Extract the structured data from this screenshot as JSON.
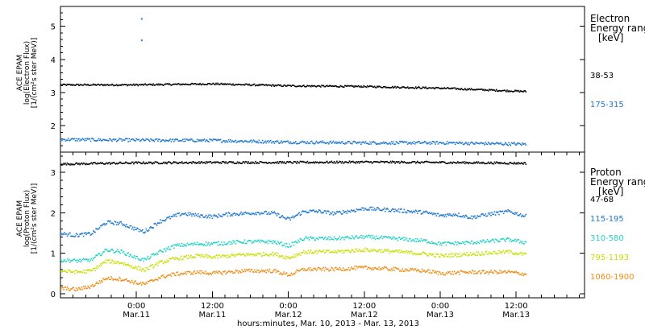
{
  "footer": {
    "xlabel": "hours:minutes, Mar. 10, 2013 - Mar. 13, 2013"
  },
  "x_ticks": [
    {
      "t": 0.5,
      "time": "0:00",
      "date": "Mar.11"
    },
    {
      "t": 1.0,
      "time": "12:00",
      "date": "Mar.11"
    },
    {
      "t": 1.5,
      "time": "0:00",
      "date": "Mar.12"
    },
    {
      "t": 2.0,
      "time": "12:00",
      "date": "Mar.12"
    },
    {
      "t": 2.5,
      "time": "0:00",
      "date": "Mar.13"
    },
    {
      "t": 3.0,
      "time": "12:00",
      "date": "Mar.13"
    }
  ],
  "chart_data": [
    {
      "type": "scatter",
      "name": "electron",
      "ylabel_lines": [
        "ACE EPAM",
        "log(Electron Flux)",
        "[1/(cm²s ster MeV)]"
      ],
      "ylim": [
        1.2,
        5.6
      ],
      "xlim": [
        0,
        3.45
      ],
      "data_end": 3.06,
      "yticks": [
        2,
        3,
        4,
        5
      ],
      "legend": {
        "title_lines": [
          "Electron",
          "Energy range",
          "[keV]"
        ],
        "entries": [
          {
            "label": "38-53",
            "color": "#000000"
          },
          {
            "label": "175-315",
            "color": "#1f78d1"
          }
        ]
      },
      "series": [
        {
          "name": "38-53",
          "color": "#000000",
          "points": [
            [
              0,
              3.25
            ],
            [
              0.5,
              3.25
            ],
            [
              1.0,
              3.28
            ],
            [
              1.5,
              3.22
            ],
            [
              2.0,
              3.2
            ],
            [
              2.5,
              3.15
            ],
            [
              3.06,
              3.05
            ]
          ]
        },
        {
          "name": "175-315",
          "color": "#1f78d1",
          "points": [
            [
              0,
              1.6
            ],
            [
              0.5,
              1.58
            ],
            [
              1.0,
              1.57
            ],
            [
              1.5,
              1.52
            ],
            [
              2.0,
              1.5
            ],
            [
              2.5,
              1.5
            ],
            [
              3.06,
              1.46
            ]
          ]
        }
      ],
      "outliers": [
        {
          "x": 0.53,
          "y": 5.25,
          "color": "#1f78d1"
        },
        {
          "x": 0.53,
          "y": 4.6,
          "color": "#1f78d1"
        }
      ]
    },
    {
      "type": "scatter",
      "name": "proton",
      "ylabel_lines": [
        "ACE EPAM",
        "log(Proton Flux)",
        "[1/(cm²s ster MeV)]"
      ],
      "ylim": [
        -0.1,
        3.5
      ],
      "xlim": [
        0,
        3.45
      ],
      "data_end": 3.06,
      "yticks": [
        0,
        1,
        2,
        3
      ],
      "legend": {
        "title_lines": [
          "Proton",
          "Energy range",
          "[keV]"
        ],
        "entries": [
          {
            "label": "47-68",
            "color": "#000000"
          },
          {
            "label": "115-195",
            "color": "#1f78d1"
          },
          {
            "label": "310-580",
            "color": "#22d3c5"
          },
          {
            "label": "795-1193",
            "color": "#c8e000"
          },
          {
            "label": "1060-1900",
            "color": "#f08c14"
          }
        ]
      },
      "series": [
        {
          "name": "47-68",
          "color": "#000000",
          "points": [
            [
              0,
              3.22
            ],
            [
              0.5,
              3.25
            ],
            [
              1.0,
              3.26
            ],
            [
              1.5,
              3.26
            ],
            [
              2.0,
              3.27
            ],
            [
              2.5,
              3.26
            ],
            [
              3.06,
              3.24
            ]
          ]
        },
        {
          "name": "115-195",
          "color": "#1f78d1",
          "points": [
            [
              0,
              1.5
            ],
            [
              0.1,
              1.46
            ],
            [
              0.2,
              1.5
            ],
            [
              0.3,
              1.78
            ],
            [
              0.4,
              1.75
            ],
            [
              0.5,
              1.6
            ],
            [
              0.55,
              1.55
            ],
            [
              0.65,
              1.8
            ],
            [
              0.72,
              1.9
            ],
            [
              0.8,
              2.0
            ],
            [
              0.9,
              1.95
            ],
            [
              1.0,
              1.92
            ],
            [
              1.1,
              1.98
            ],
            [
              1.2,
              2.0
            ],
            [
              1.3,
              2.02
            ],
            [
              1.4,
              2.0
            ],
            [
              1.5,
              1.85
            ],
            [
              1.6,
              2.05
            ],
            [
              1.7,
              2.05
            ],
            [
              1.8,
              2.0
            ],
            [
              2.0,
              2.12
            ],
            [
              2.2,
              2.08
            ],
            [
              2.4,
              2.02
            ],
            [
              2.5,
              1.95
            ],
            [
              2.6,
              1.98
            ],
            [
              2.7,
              1.9
            ],
            [
              2.8,
              1.97
            ],
            [
              2.95,
              2.05
            ],
            [
              3.06,
              1.93
            ]
          ]
        },
        {
          "name": "310-580",
          "color": "#22d3c5",
          "points": [
            [
              0,
              0.85
            ],
            [
              0.1,
              0.83
            ],
            [
              0.2,
              0.85
            ],
            [
              0.3,
              1.1
            ],
            [
              0.4,
              1.05
            ],
            [
              0.5,
              0.9
            ],
            [
              0.55,
              0.85
            ],
            [
              0.65,
              1.05
            ],
            [
              0.75,
              1.2
            ],
            [
              0.9,
              1.25
            ],
            [
              1.0,
              1.25
            ],
            [
              1.2,
              1.3
            ],
            [
              1.4,
              1.3
            ],
            [
              1.5,
              1.2
            ],
            [
              1.6,
              1.38
            ],
            [
              1.8,
              1.38
            ],
            [
              2.0,
              1.42
            ],
            [
              2.2,
              1.38
            ],
            [
              2.4,
              1.32
            ],
            [
              2.5,
              1.25
            ],
            [
              2.7,
              1.28
            ],
            [
              2.95,
              1.35
            ],
            [
              3.06,
              1.28
            ]
          ]
        },
        {
          "name": "795-1193",
          "color": "#c8e000",
          "points": [
            [
              0,
              0.58
            ],
            [
              0.1,
              0.55
            ],
            [
              0.2,
              0.58
            ],
            [
              0.3,
              0.82
            ],
            [
              0.4,
              0.78
            ],
            [
              0.5,
              0.65
            ],
            [
              0.55,
              0.6
            ],
            [
              0.65,
              0.78
            ],
            [
              0.75,
              0.88
            ],
            [
              0.9,
              0.95
            ],
            [
              1.0,
              0.92
            ],
            [
              1.2,
              0.98
            ],
            [
              1.4,
              1.0
            ],
            [
              1.5,
              0.9
            ],
            [
              1.6,
              1.05
            ],
            [
              1.8,
              1.05
            ],
            [
              2.0,
              1.1
            ],
            [
              2.2,
              1.06
            ],
            [
              2.4,
              1.0
            ],
            [
              2.5,
              0.95
            ],
            [
              2.7,
              1.0
            ],
            [
              2.95,
              1.05
            ],
            [
              3.06,
              0.98
            ]
          ]
        },
        {
          "name": "1060-1900",
          "color": "#f08c14",
          "points": [
            [
              0,
              0.15
            ],
            [
              0.1,
              0.12
            ],
            [
              0.2,
              0.2
            ],
            [
              0.3,
              0.4
            ],
            [
              0.4,
              0.38
            ],
            [
              0.5,
              0.28
            ],
            [
              0.55,
              0.25
            ],
            [
              0.65,
              0.42
            ],
            [
              0.75,
              0.5
            ],
            [
              0.9,
              0.55
            ],
            [
              1.0,
              0.52
            ],
            [
              1.2,
              0.58
            ],
            [
              1.4,
              0.58
            ],
            [
              1.5,
              0.48
            ],
            [
              1.6,
              0.62
            ],
            [
              1.8,
              0.62
            ],
            [
              2.0,
              0.66
            ],
            [
              2.2,
              0.62
            ],
            [
              2.4,
              0.58
            ],
            [
              2.5,
              0.52
            ],
            [
              2.7,
              0.55
            ],
            [
              2.95,
              0.55
            ],
            [
              3.06,
              0.5
            ]
          ]
        }
      ],
      "outliers": []
    }
  ]
}
